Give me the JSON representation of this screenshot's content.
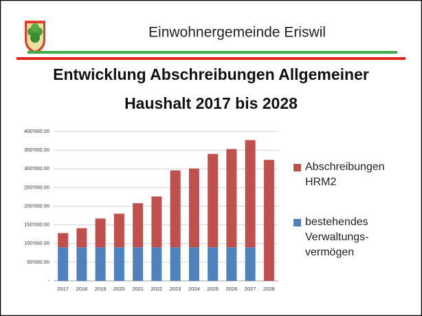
{
  "header": {
    "title": "Einwohnergemeinde Eriswil"
  },
  "chart_data": {
    "type": "bar",
    "stacked": true,
    "title": "Entwicklung Abschreibungen Allgemeiner Haushalt 2017 bis 2028",
    "categories": [
      "2017",
      "2018",
      "2019",
      "2020",
      "2021",
      "2022",
      "2023",
      "2024",
      "2025",
      "2026",
      "2027",
      "2028"
    ],
    "series": [
      {
        "name": "bestehendes Verwaltungs-vermögen",
        "color": "#4f81bd",
        "values": [
          90000,
          90000,
          90000,
          90000,
          90000,
          90000,
          90000,
          90000,
          90000,
          90000,
          90000,
          0
        ]
      },
      {
        "name": "Abschreibungen HRM2",
        "color": "#c0504d",
        "values": [
          38000,
          51000,
          77000,
          90000,
          118000,
          136000,
          206000,
          211000,
          250000,
          263000,
          287000,
          324000
        ]
      }
    ],
    "ylim": [
      0,
      400000
    ],
    "yticks": [
      {
        "value": 0,
        "label": "-"
      },
      {
        "value": 50000,
        "label": "50'000.00"
      },
      {
        "value": 100000,
        "label": "100'000.00"
      },
      {
        "value": 150000,
        "label": "150'000.00"
      },
      {
        "value": 200000,
        "label": "200'000.00"
      },
      {
        "value": 250000,
        "label": "250'000.00"
      },
      {
        "value": 300000,
        "label": "300'000.00"
      },
      {
        "value": 350000,
        "label": "350'000.00"
      },
      {
        "value": 400000,
        "label": "400'000.00"
      }
    ],
    "grid": true,
    "legend": "right"
  }
}
